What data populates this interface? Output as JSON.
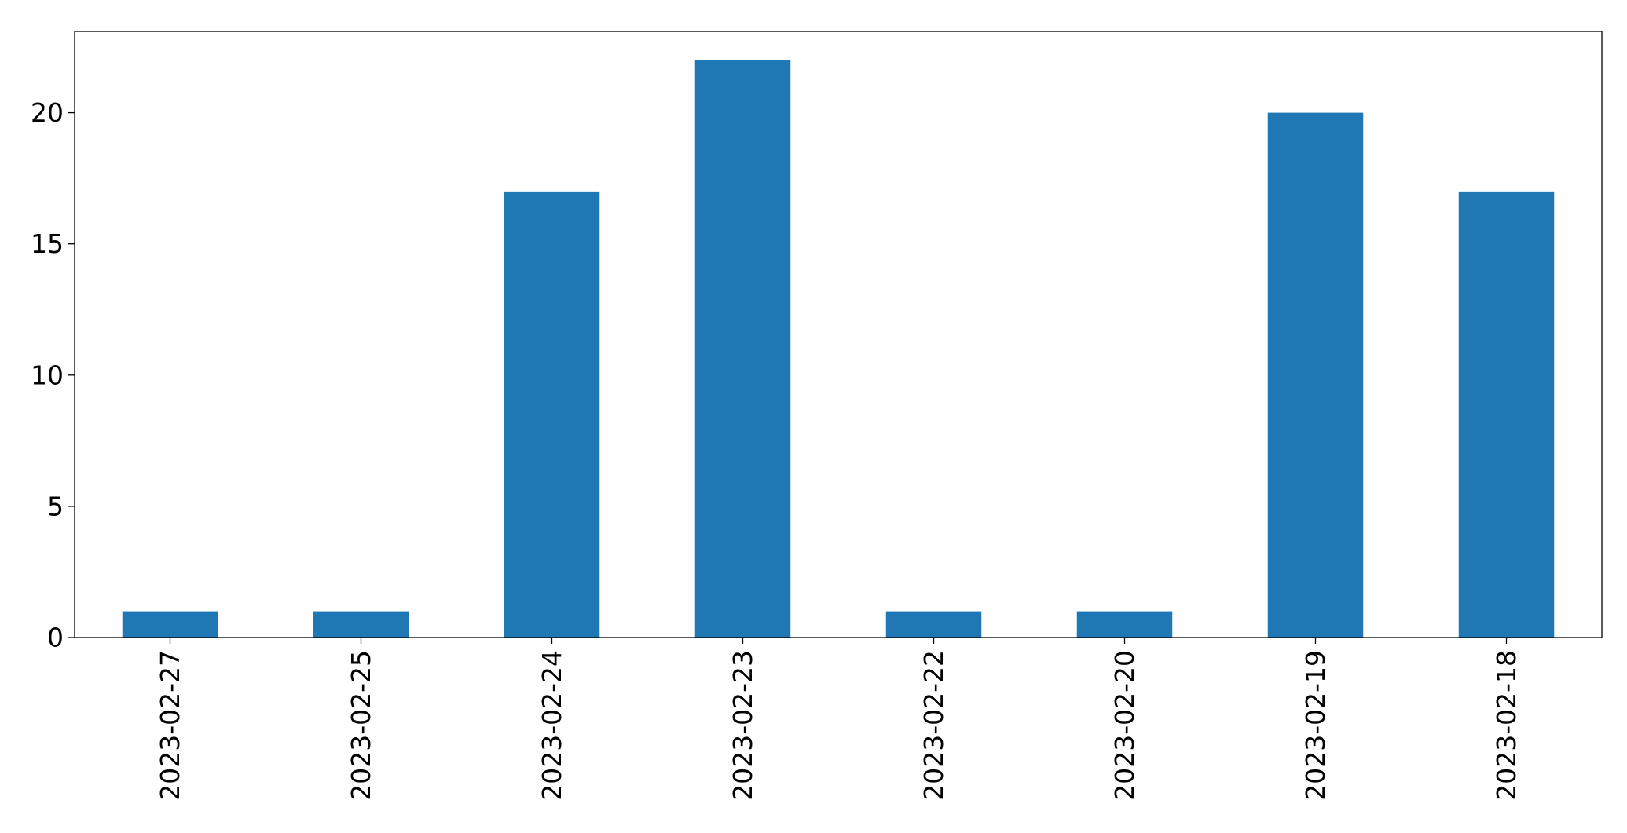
{
  "chart_data": {
    "type": "bar",
    "title": "",
    "xlabel": "",
    "ylabel": "",
    "categories": [
      "2023-02-27",
      "2023-02-25",
      "2023-02-24",
      "2023-02-23",
      "2023-02-22",
      "2023-02-20",
      "2023-02-19",
      "2023-02-18"
    ],
    "values": [
      1,
      1,
      17,
      22,
      1,
      1,
      20,
      17
    ],
    "ylim": [
      0,
      23.1
    ],
    "yticks": [
      0,
      5,
      10,
      15,
      20
    ],
    "grid": false,
    "legend": "none",
    "bar_color": "#1f77b4"
  }
}
